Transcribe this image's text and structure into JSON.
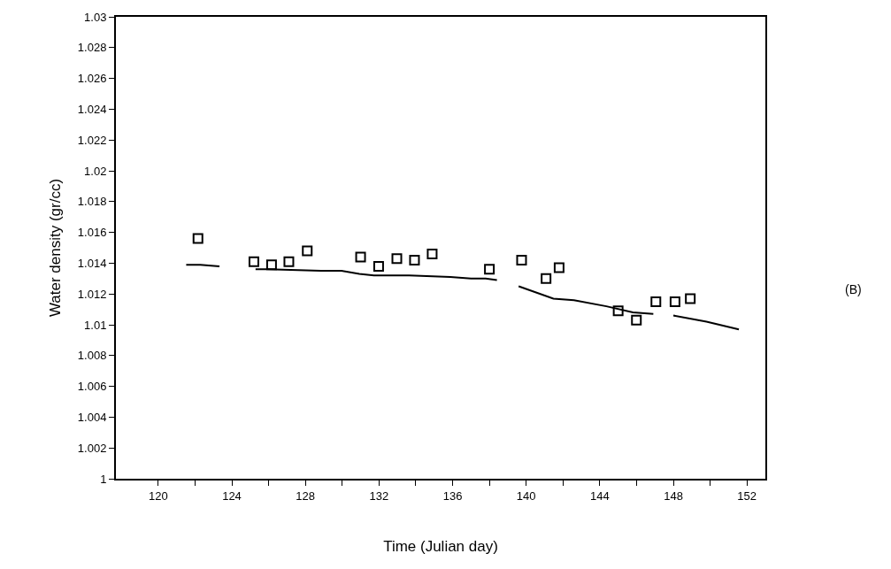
{
  "chart_data": {
    "type": "scatter",
    "xlabel": "Time (Julian day)",
    "ylabel": "Water density (gr/cc)",
    "xlim": [
      117.7,
      153
    ],
    "ylim": [
      1,
      1.03
    ],
    "xticks": [
      120,
      {
        "value": 122,
        "label": null
      },
      124,
      {
        "value": 126,
        "label": null
      },
      128,
      {
        "value": 130,
        "label": null
      },
      132,
      {
        "value": 134,
        "label": null
      },
      136,
      {
        "value": 138,
        "label": null
      },
      140,
      {
        "value": 142,
        "label": null
      },
      144,
      {
        "value": 146,
        "label": null
      },
      148,
      {
        "value": 150,
        "label": null
      },
      152
    ],
    "yticks": [
      1,
      1.002,
      1.004,
      1.006,
      1.008,
      1.01,
      1.012,
      1.014,
      1.016,
      1.018,
      1.02,
      1.022,
      1.024,
      1.026,
      1.028,
      1.03
    ],
    "series": [
      {
        "marker": "square",
        "color": "#000000",
        "x": [
          122.16,
          125.2,
          126.16,
          127.1,
          128.1,
          131.0,
          131.98,
          132.97,
          133.93,
          134.89,
          138.0,
          139.75,
          141.08,
          141.79,
          145.0,
          145.99,
          147.05,
          148.09,
          148.92
        ],
        "values": [
          1.0156,
          1.0141,
          1.0139,
          1.0141,
          1.0148,
          1.0144,
          1.0138,
          1.0143,
          1.0142,
          1.0146,
          1.0136,
          1.0142,
          1.013,
          1.0137,
          1.0109,
          1.0103,
          1.0115,
          1.0115,
          1.0117
        ]
      },
      {
        "type": "line",
        "marker": "none",
        "line_style": "solid",
        "color": "#000000",
        "x": [
          121.52,
          122.29,
          123.33,
          null,
          125.29,
          125.96,
          128.84,
          129.96,
          130.93,
          131.72,
          133.64,
          135.88,
          137.0,
          137.8,
          138.41,
          null,
          139.59,
          141.48,
          142.6,
          144.36,
          145.8,
          146.91,
          null,
          148.0,
          149.8,
          151.56
        ],
        "values": [
          1.0139,
          1.0139,
          1.0138,
          null,
          1.0136,
          1.0136,
          1.0135,
          1.0135,
          1.0133,
          1.0132,
          1.0132,
          1.0131,
          1.013,
          1.013,
          1.0129,
          null,
          1.0125,
          1.0117,
          1.0116,
          1.0112,
          1.0108,
          1.0107,
          null,
          1.0106,
          1.0102,
          1.0097
        ]
      }
    ],
    "annotations": [
      "(B)"
    ]
  }
}
